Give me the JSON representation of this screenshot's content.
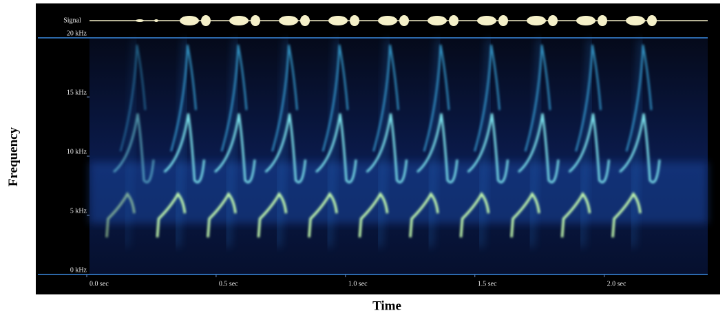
{
  "chart_data": {
    "type": "spectrogram",
    "signal_label": "Signal",
    "xlabel": "Time",
    "ylabel": "Frequency",
    "xlim": [
      0,
      2.4
    ],
    "ylim": [
      0,
      20
    ],
    "xticks": [
      {
        "value": 0,
        "label": "0.0 sec"
      },
      {
        "value": 0.5,
        "label": "0.5 sec"
      },
      {
        "value": 1.0,
        "label": "1.0 sec"
      },
      {
        "value": 1.5,
        "label": "1.5 sec"
      },
      {
        "value": 2.0,
        "label": "2.0 sec"
      }
    ],
    "yticks": [
      {
        "value": 0,
        "label": "0 kHz"
      },
      {
        "value": 5,
        "label": "5 kHz"
      },
      {
        "value": 10,
        "label": "10 kHz"
      },
      {
        "value": 15,
        "label": "15 kHz"
      },
      {
        "value": 20,
        "label": "20 kHz"
      }
    ]
  }
}
